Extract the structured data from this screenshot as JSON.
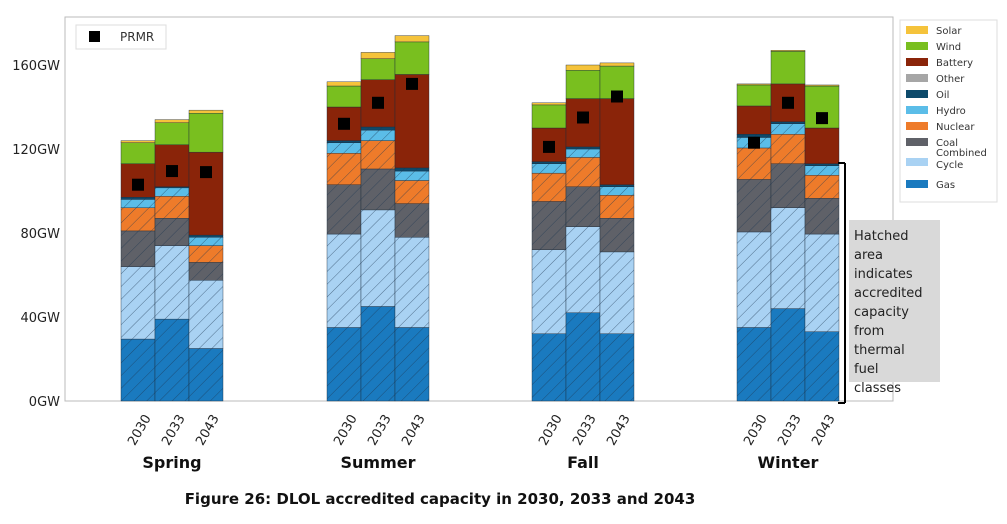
{
  "chart_data": {
    "type": "bar",
    "stacked": true,
    "title": "Figure 26: DLOL accredited capacity in 2030, 2033 and 2043",
    "ylabel": "",
    "ylim": [
      0,
      183
    ],
    "yticks": [
      0,
      40,
      80,
      120,
      160
    ],
    "ytick_labels": [
      "0GW",
      "40GW",
      "80GW",
      "120GW",
      "160GW"
    ],
    "groups": [
      "Spring",
      "Summer",
      "Fall",
      "Winter"
    ],
    "years": [
      "2030",
      "2033",
      "2043"
    ],
    "series": [
      {
        "name": "Gas",
        "color": "#1a7abf",
        "hatched": true,
        "values": [
          29.5,
          39,
          25,
          35,
          45,
          35,
          32,
          42,
          32,
          35,
          44,
          33
        ]
      },
      {
        "name": "Combined Cycle",
        "color": "#a9d2f3",
        "hatched": true,
        "values": [
          34.5,
          35,
          32.5,
          44.5,
          46,
          43,
          40,
          41,
          39,
          45.5,
          48,
          46.5
        ]
      },
      {
        "name": "Coal",
        "color": "#5f6168",
        "hatched": true,
        "values": [
          17,
          13,
          8.5,
          23.5,
          19.5,
          16,
          23,
          19,
          16,
          25,
          21,
          17
        ]
      },
      {
        "name": "Nuclear",
        "color": "#ee7b2a",
        "hatched": true,
        "values": [
          11,
          10.5,
          8,
          15,
          13.5,
          11,
          13.5,
          14,
          11,
          15,
          14,
          11
        ]
      },
      {
        "name": "Hydro",
        "color": "#5bbde8",
        "hatched": true,
        "values": [
          4,
          4,
          4,
          5,
          5,
          4.5,
          4.5,
          4,
          4,
          5,
          5,
          4.5
        ]
      },
      {
        "name": "Oil",
        "color": "#0d4a6b",
        "hatched": true,
        "values": [
          1,
          0.5,
          1,
          1,
          1.5,
          1.5,
          1,
          1,
          1,
          1.5,
          1,
          1
        ]
      },
      {
        "name": "Other",
        "color": "#a6a6a6",
        "hatched": false,
        "values": [
          0,
          0,
          0,
          0,
          0,
          0,
          0,
          0,
          0,
          0,
          0,
          0
        ]
      },
      {
        "name": "Battery",
        "color": "#8a2409",
        "hatched": false,
        "values": [
          16,
          20,
          39.5,
          16,
          22.5,
          44.5,
          16,
          23,
          41,
          13.5,
          18,
          17
        ]
      },
      {
        "name": "Wind",
        "color": "#79bf1f",
        "hatched": false,
        "values": [
          10,
          10.5,
          18.5,
          10,
          10,
          15.5,
          11,
          13.5,
          15.5,
          10,
          15.5,
          20
        ]
      },
      {
        "name": "Solar",
        "color": "#f5c33b",
        "hatched": false,
        "values": [
          1,
          1.5,
          1.5,
          2,
          3,
          3,
          1,
          2.5,
          1.5,
          0.5,
          0.5,
          0.5
        ]
      }
    ],
    "prmr": {
      "name": "PRMR",
      "values": [
        103,
        109.5,
        109,
        132,
        142,
        151,
        121,
        135,
        145,
        123,
        142,
        134.7
      ]
    },
    "legend": {
      "placement": "right",
      "labels": [
        "Solar",
        "Wind",
        "Battery",
        "Other",
        "Oil",
        "Hydro",
        "Nuclear",
        "Coal",
        "Combined Cycle",
        "Gas"
      ]
    },
    "annotation": "Hatched area indicates accredited capacity from thermal fuel classes"
  }
}
